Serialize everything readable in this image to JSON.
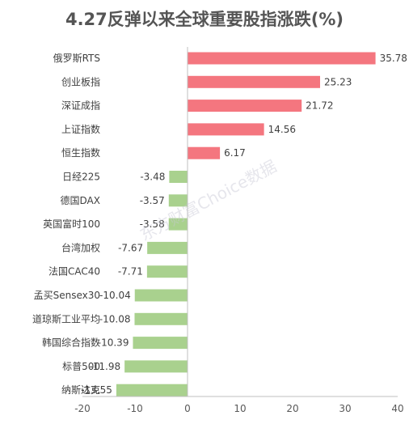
{
  "chart_data": {
    "type": "bar",
    "orientation": "horizontal",
    "title": "4.27反弹以来全球重要股指涨跌(%)",
    "categories": [
      "俄罗斯RTS",
      "创业板指",
      "深证成指",
      "上证指数",
      "恒生指数",
      "日经225",
      "德国DAX",
      "英国富时100",
      "台湾加权",
      "法国CAC40",
      "孟买Sensex30",
      "道琼斯工业平均",
      "韩国综合指数",
      "标普500",
      "纳斯达克"
    ],
    "values": [
      35.78,
      25.23,
      21.72,
      14.56,
      6.17,
      -3.48,
      -3.57,
      -3.58,
      -7.67,
      -7.71,
      -10.04,
      -10.08,
      -10.39,
      -11.98,
      -13.55
    ],
    "value_labels": [
      "35.78",
      "25.23",
      "21.72",
      "14.56",
      "6.17",
      "-3.48",
      "-3.57",
      "-3.58",
      "-7.67",
      "-7.71",
      "-10.04",
      "-10.08",
      "-10.39",
      "-11.98",
      "-13.55"
    ],
    "xlim": [
      -20,
      40
    ],
    "xticks": [
      "-20",
      "-10",
      "0",
      "10",
      "20",
      "30",
      "40"
    ],
    "xlabel": "",
    "ylabel": "",
    "grid": false,
    "legend": "none",
    "colors": {
      "positive": "#f4767f",
      "negative": "#a9d18e",
      "axis": "#bfbfbf"
    },
    "watermark": "东方财富Choice数据"
  }
}
